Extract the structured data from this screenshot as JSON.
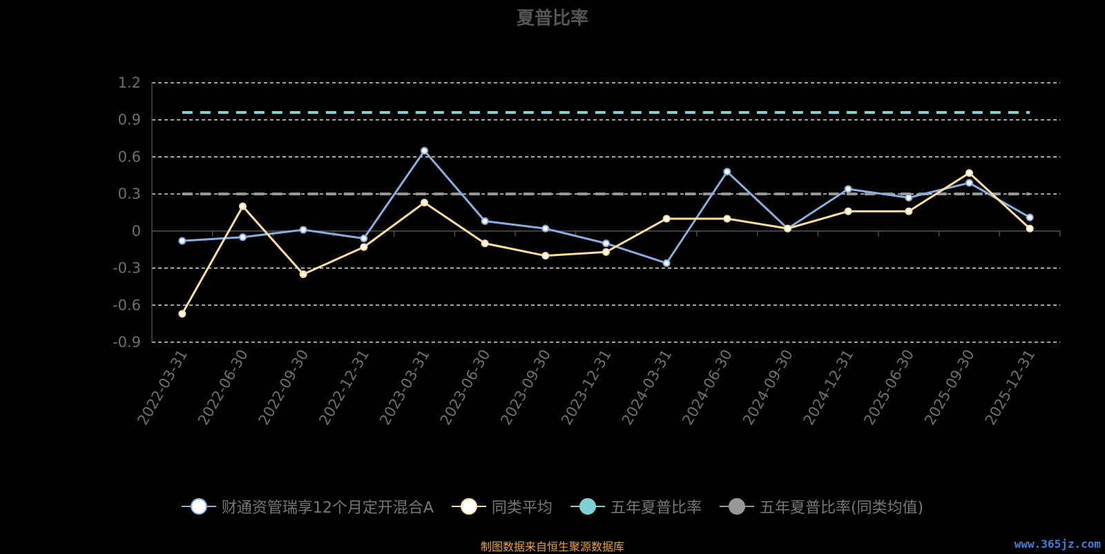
{
  "chart_data": {
    "type": "line",
    "title": "夏普比率",
    "categories": [
      "2022-03-31",
      "2022-06-30",
      "2022-09-30",
      "2022-12-31",
      "2023-03-31",
      "2023-06-30",
      "2023-09-30",
      "2023-12-31",
      "2024-03-31",
      "2024-06-30",
      "2024-09-30",
      "2024-12-31",
      "2025-06-30",
      "2025-09-30",
      "2025-12-31"
    ],
    "ylim": [
      -0.9,
      1.2
    ],
    "yticks": [
      "1.2",
      "0.9",
      "0.6",
      "0.3",
      "0",
      "-0.3",
      "-0.6",
      "-0.9"
    ],
    "grid": true,
    "legend_position": "bottom",
    "series": [
      {
        "name": "财通资管瑞享12个月定开混合A",
        "color": "#8aaee0",
        "values": [
          -0.08,
          -0.05,
          0.01,
          -0.06,
          0.65,
          0.08,
          0.02,
          -0.1,
          -0.26,
          0.48,
          0.02,
          0.34,
          0.27,
          0.39,
          0.11
        ]
      },
      {
        "name": "同类平均",
        "color": "#ffdfa0",
        "values": [
          -0.67,
          0.2,
          -0.35,
          -0.13,
          0.23,
          -0.1,
          -0.2,
          -0.17,
          0.1,
          0.1,
          0.02,
          0.16,
          0.16,
          0.47,
          0.02
        ]
      },
      {
        "name": "五年夏普比率",
        "color": "#7fd1d3",
        "reference_value": 0.96
      },
      {
        "name": "五年夏普比率(同类均值)",
        "color": "#999999",
        "reference_value": 0.3
      }
    ]
  },
  "source": "制图数据来自恒生聚源数据库",
  "watermark": "www.365jz.com"
}
